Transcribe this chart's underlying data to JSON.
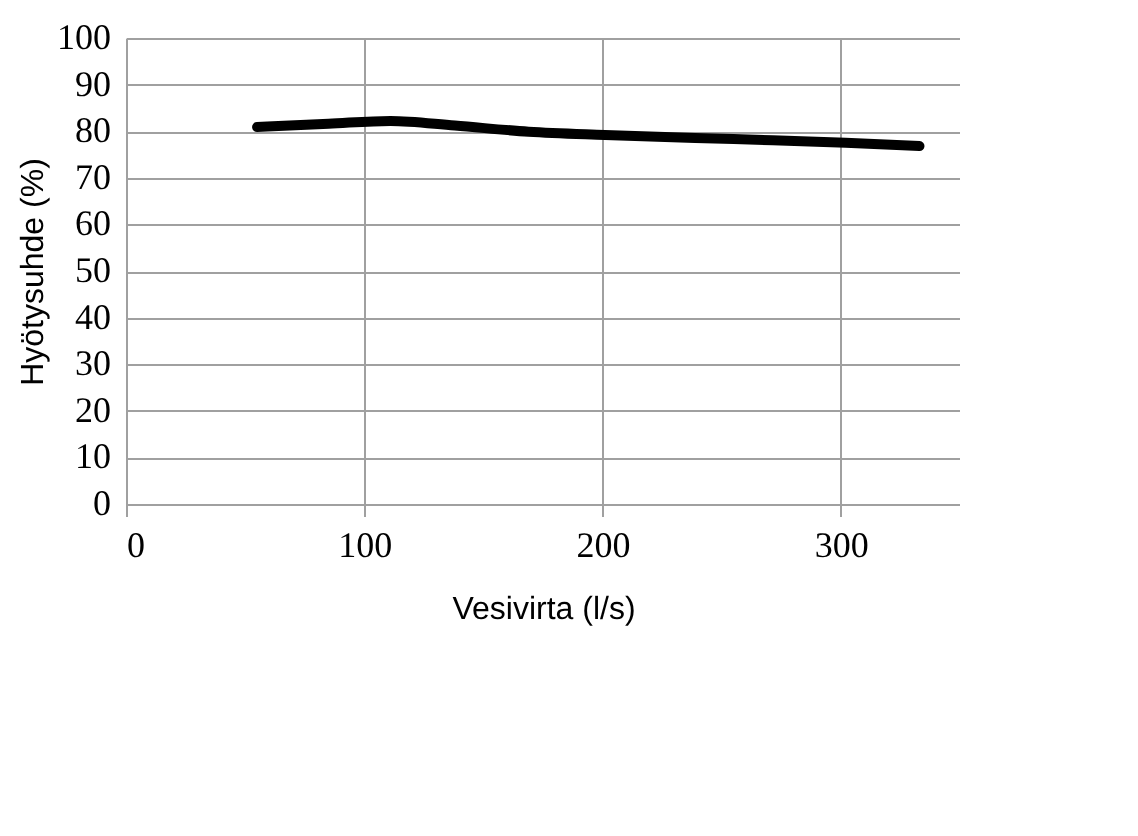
{
  "chart_data": {
    "type": "line",
    "xlabel": "Vesivirta (l/s)",
    "ylabel": "Hyötysuhde (%)",
    "x": [
      55,
      85,
      111,
      138,
      169,
      201,
      255,
      302,
      333
    ],
    "series": [
      {
        "color": "#000000",
        "values": [
          80.9,
          81.6,
          82.2,
          81.2,
          79.9,
          79.2,
          78.3,
          77.5,
          76.8
        ]
      }
    ],
    "xlim": [
      0,
      350
    ],
    "xticks": [
      0,
      100,
      200,
      300
    ],
    "ylim": [
      0,
      100
    ],
    "yticks": [
      0,
      10,
      20,
      30,
      40,
      50,
      60,
      70,
      80,
      90,
      100
    ],
    "grid": true,
    "marker": "none",
    "line_style": "solid",
    "legend": false
  }
}
